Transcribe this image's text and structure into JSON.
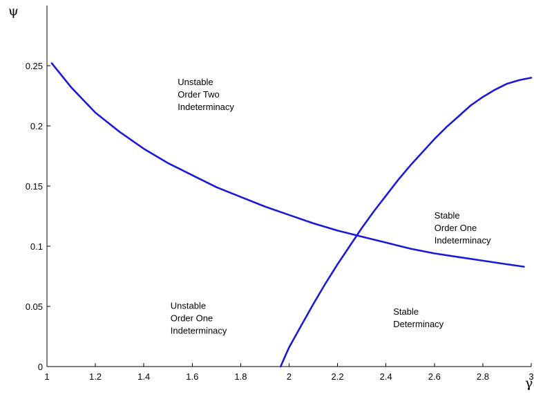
{
  "chart_data": {
    "type": "line",
    "title": "",
    "xlabel": "γ",
    "ylabel": "ψ",
    "xlim": [
      1,
      3
    ],
    "ylim": [
      0,
      0.3
    ],
    "xticks": [
      1,
      1.2,
      1.4,
      1.6,
      1.8,
      2,
      2.2,
      2.4,
      2.6,
      2.8,
      3
    ],
    "xtick_labels": [
      "1",
      "1.2",
      "1.4",
      "1.6",
      "1.8",
      "2",
      "2.2",
      "2.4",
      "2.6",
      "2.8",
      "3"
    ],
    "yticks": [
      0,
      0.05,
      0.1,
      0.15,
      0.2,
      0.25
    ],
    "ytick_labels": [
      "0",
      "0.05",
      "0.1",
      "0.15",
      "0.2",
      "0.25"
    ],
    "grid": false,
    "series": [
      {
        "color": "#1a1ad6",
        "x": [
          1.02,
          1.1,
          1.2,
          1.3,
          1.4,
          1.5,
          1.6,
          1.7,
          1.8,
          1.9,
          2.0,
          2.1,
          2.2,
          2.3,
          2.4,
          2.5,
          2.6,
          2.7,
          2.8,
          2.9,
          2.97
        ],
        "y": [
          0.252,
          0.232,
          0.211,
          0.195,
          0.181,
          0.169,
          0.159,
          0.149,
          0.141,
          0.133,
          0.126,
          0.119,
          0.113,
          0.108,
          0.103,
          0.098,
          0.094,
          0.091,
          0.088,
          0.085,
          0.083
        ]
      },
      {
        "color": "#1a1ad6",
        "x": [
          1.965,
          1.98,
          2.0,
          2.05,
          2.1,
          2.15,
          2.2,
          2.25,
          2.3,
          2.35,
          2.4,
          2.45,
          2.5,
          2.55,
          2.6,
          2.65,
          2.7,
          2.75,
          2.8,
          2.85,
          2.9,
          2.95,
          3.0
        ],
        "y": [
          0.0,
          0.007,
          0.016,
          0.034,
          0.052,
          0.069,
          0.085,
          0.1,
          0.115,
          0.129,
          0.142,
          0.155,
          0.167,
          0.178,
          0.189,
          0.199,
          0.208,
          0.217,
          0.224,
          0.23,
          0.235,
          0.238,
          0.24
        ]
      }
    ],
    "annotations": [
      {
        "id": "unstable-order-two",
        "lines": [
          "Unstable",
          "Order Two",
          "Indeterminacy"
        ],
        "x": 1.54,
        "y": 0.234
      },
      {
        "id": "stable-order-one",
        "lines": [
          "Stable",
          "Order One",
          "Indeterminacy"
        ],
        "x": 2.6,
        "y": 0.123
      },
      {
        "id": "unstable-order-one",
        "lines": [
          "Unstable",
          "Order One",
          "Indeterminacy"
        ],
        "x": 1.51,
        "y": 0.048
      },
      {
        "id": "stable-determinacy",
        "lines": [
          "Stable",
          "Determinacy"
        ],
        "x": 2.43,
        "y": 0.043
      }
    ]
  }
}
